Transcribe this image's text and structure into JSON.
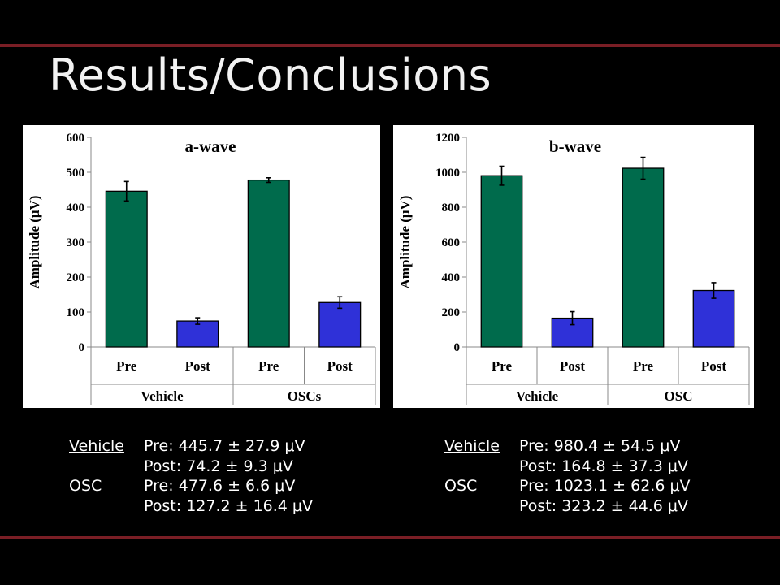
{
  "slide": {
    "title": "Results/Conclusions"
  },
  "colors": {
    "pre": "#006b4c",
    "post": "#2f31d8",
    "accent": "#7a1e25"
  },
  "chart_data": [
    {
      "type": "bar",
      "title": "a-wave",
      "ylabel": "Amplitude (μV)",
      "ylim": [
        0,
        600
      ],
      "yticks": [
        0,
        100,
        200,
        300,
        400,
        500,
        600
      ],
      "categories": [
        "Pre",
        "Post",
        "Pre",
        "Post"
      ],
      "groups": [
        "Vehicle",
        "OSCs"
      ],
      "values": [
        445.7,
        74.2,
        477.6,
        127.2
      ],
      "errors": [
        27.9,
        9.3,
        6.6,
        16.4
      ],
      "grid": false
    },
    {
      "type": "bar",
      "title": "b-wave",
      "ylabel": "Amplitude (μV)",
      "ylim": [
        0,
        1200
      ],
      "yticks": [
        0,
        200,
        400,
        600,
        800,
        1000,
        1200
      ],
      "categories": [
        "Pre",
        "Post",
        "Pre",
        "Post"
      ],
      "groups": [
        "Vehicle",
        "OSC"
      ],
      "values": [
        980.4,
        164.8,
        1023.1,
        323.2
      ],
      "errors": [
        54.5,
        37.3,
        62.6,
        44.6
      ],
      "grid": false
    }
  ],
  "stats": [
    {
      "rows": [
        {
          "group": "Vehicle",
          "text": "Pre: 445.7 ± 27.9 μV"
        },
        {
          "group": "",
          "text": "Post: 74.2 ± 9.3 μV"
        },
        {
          "group": "OSC",
          "text": "Pre: 477.6 ± 6.6 μV"
        },
        {
          "group": "",
          "text": "Post: 127.2 ± 16.4 μV"
        }
      ]
    },
    {
      "rows": [
        {
          "group": "Vehicle",
          "text": "Pre: 980.4 ± 54.5 μV"
        },
        {
          "group": "",
          "text": "Post: 164.8 ± 37.3 μV"
        },
        {
          "group": "OSC",
          "text": "Pre: 1023.1 ± 62.6 μV"
        },
        {
          "group": "",
          "text": "Post: 323.2 ± 44.6 μV"
        }
      ]
    }
  ]
}
